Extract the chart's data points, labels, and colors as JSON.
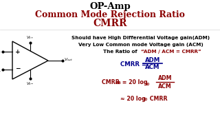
{
  "title1": "OP-Amp",
  "title2": "Common Mode Rejection Ratio",
  "title3": "CMRR",
  "bg_color": "#ffffff",
  "title1_color": "#000000",
  "title2_color": "#8B0000",
  "title3_color": "#8B0000",
  "black": "#000000",
  "red_color": "#8B0000",
  "blue_color": "#00008B",
  "line1": "Should have High Differential Voltage gain(ADM)",
  "line2": "Very Low Common mode Voltage gain (ACM)",
  "figsize": [
    3.2,
    1.8
  ],
  "dpi": 100
}
